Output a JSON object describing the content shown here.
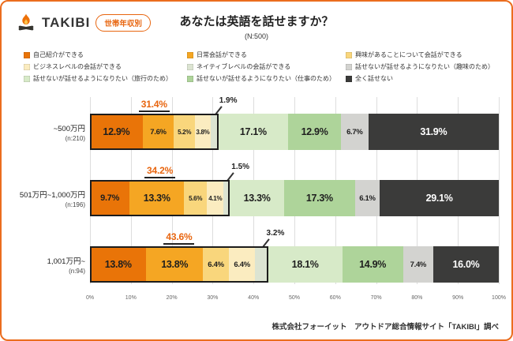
{
  "header": {
    "brand": "TAKIBI",
    "badge": "世帯年収別",
    "title": "あなたは英語を話せますか？",
    "n_label": "(N:500)"
  },
  "footer": {
    "source": "株式会社フォーイット　アウトドア総合情報サイト「TAKIBI」調べ"
  },
  "colors": {
    "card_border": "#EB6D1E",
    "accent_orange": "#E8650F",
    "annotation_line": "#222222",
    "cant_speak_black": "#3B3B3A"
  },
  "chart_data": {
    "type": "bar",
    "variant": "horizontal-stacked-100pct",
    "title": "あなたは英語を話せますか？",
    "sample": "(N:500)",
    "xlim": [
      0,
      100
    ],
    "x_ticks": [
      "0%",
      "10%",
      "20%",
      "30%",
      "40%",
      "50%",
      "60%",
      "70%",
      "80%",
      "90%",
      "100%"
    ],
    "series": [
      {
        "name": "自己紹介ができる",
        "color": "#E97408"
      },
      {
        "name": "日常会話ができる",
        "color": "#F5A623"
      },
      {
        "name": "興味があることについて会話ができる",
        "color": "#F9D67C"
      },
      {
        "name": "ビジネスレベルの会話ができる",
        "color": "#FBECC0"
      },
      {
        "name": "ネイティブレベルの会話ができる",
        "color": "#DCE4D2"
      },
      {
        "name": "話せないが話せるようになりたい（旅行のため）",
        "color": "#D7EAC8"
      },
      {
        "name": "話せないが話せるようになりたい（仕事のため）",
        "color": "#AED49A"
      },
      {
        "name": "話せないが話せるようになりたい（趣味のため）",
        "color": "#D3D3D0"
      },
      {
        "name": "全く話せない",
        "color": "#3B3B3A"
      }
    ],
    "legend_rows": [
      [
        0,
        1,
        2
      ],
      [
        3,
        4,
        7
      ],
      [
        5,
        6,
        8
      ]
    ],
    "categories": [
      {
        "label": "~500万円",
        "n": "(n:210)"
      },
      {
        "label": "501万円~1,000万円",
        "n": "(n:196)"
      },
      {
        "label": "1,001万円~",
        "n": "(n:94)"
      }
    ],
    "values": [
      [
        12.9,
        7.6,
        5.2,
        3.8,
        1.9,
        17.1,
        12.9,
        6.7,
        31.9
      ],
      [
        9.7,
        13.3,
        5.6,
        4.1,
        1.5,
        13.3,
        17.3,
        6.1,
        29.1
      ],
      [
        13.8,
        13.8,
        6.4,
        6.4,
        3.2,
        18.1,
        14.9,
        7.4,
        16.0
      ]
    ],
    "can_speak_totals": [
      "31.4%",
      "34.2%",
      "43.6%"
    ],
    "native_callouts": [
      "1.9%",
      "1.5%",
      "3.2%"
    ]
  }
}
